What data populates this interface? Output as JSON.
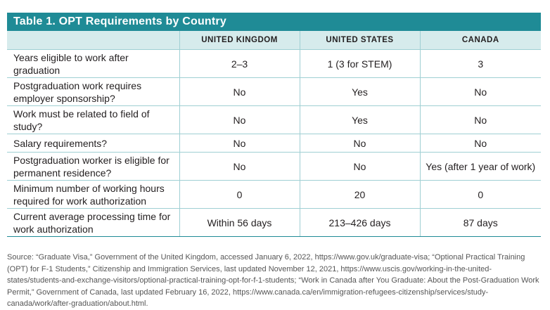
{
  "table": {
    "title": "Table 1. OPT Requirements by Country",
    "columns": [
      "UNITED KINGDOM",
      "UNITED STATES",
      "CANADA"
    ],
    "rows": [
      {
        "label": "Years eligible to work after graduation",
        "uk": "2–3",
        "us": "1 (3 for STEM)",
        "ca": "3"
      },
      {
        "label": "Postgraduation work requires employer sponsorship?",
        "uk": "No",
        "us": "Yes",
        "ca": "No"
      },
      {
        "label": "Work must be related to field of study?",
        "uk": "No",
        "us": "Yes",
        "ca": "No"
      },
      {
        "label": "Salary requirements?",
        "uk": "No",
        "us": "No",
        "ca": "No"
      },
      {
        "label": "Postgraduation worker is eligible for permanent residence?",
        "uk": "No",
        "us": "No",
        "ca": "Yes (after 1 year of work)"
      },
      {
        "label": "Minimum number of working hours required for work authorization",
        "uk": "0",
        "us": "20",
        "ca": "0"
      },
      {
        "label": "Current average processing time for work authorization",
        "uk": "Within 56 days",
        "us": "213–426 days",
        "ca": "87 days"
      }
    ]
  },
  "source": "Source: “Graduate Visa,” Government of the United Kingdom, accessed January 6, 2022, https://www.gov.uk/graduate-visa; “Optional Practical Training (OPT) for F-1 Students,” Citizenship and Immigration Services, last updated November 12, 2021, https://www.uscis.gov/working-in-the-united-states/students-and-exchange-visitors/optional-practical-training-opt-for-f-1-students; “Work in Canada after You Graduate: About the Post-Graduation Work Permit,” Government of Canada, last updated February 16, 2022, https://www.canada.ca/en/immigration-refugees-citizenship/services/study-canada/work/after-graduation/about.html.",
  "colors": {
    "header": "#1f8b96",
    "subheader": "#d6ebec",
    "border": "#9fcfd3"
  }
}
